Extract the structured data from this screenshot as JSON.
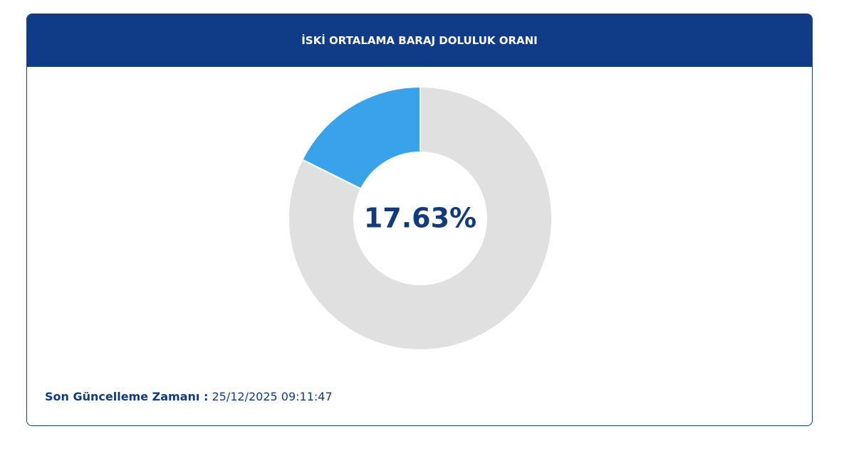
{
  "chart_data": {
    "type": "donut",
    "title": "İSKİ ORTALAMA BARAJ DOLULUK ORANI",
    "values": [
      17.63,
      82.37
    ],
    "value_labels": [
      "17.63%",
      null
    ],
    "colors": [
      "#38a3ea",
      "#e0e0e0"
    ],
    "direction": "counterclockwise"
  },
  "footer": {
    "label": "Son Güncelleme Zamanı :",
    "value": "25/12/2025 09:11:47"
  }
}
